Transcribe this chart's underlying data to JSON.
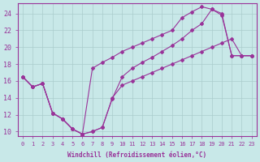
{
  "xlabel": "Windchill (Refroidissement éolien,°C)",
  "bg_color": "#c8e8e8",
  "line_color": "#993399",
  "grid_color": "#aacccc",
  "ylim": [
    9.5,
    25.2
  ],
  "xlim": [
    -0.5,
    23.5
  ],
  "yticks": [
    10,
    12,
    14,
    16,
    18,
    20,
    22,
    24
  ],
  "xticks": [
    0,
    1,
    2,
    3,
    4,
    5,
    6,
    7,
    8,
    9,
    10,
    11,
    12,
    13,
    14,
    15,
    16,
    17,
    18,
    19,
    20,
    21,
    22,
    23
  ],
  "series1_x": [
    0,
    1,
    2,
    3,
    4,
    5,
    6,
    7,
    8,
    9,
    10,
    11,
    12,
    13,
    14,
    15,
    16,
    17,
    18,
    19,
    20,
    21,
    22,
    23
  ],
  "series1_y": [
    16.5,
    15.3,
    15.7,
    12.2,
    11.5,
    10.3,
    9.7,
    17.5,
    18.2,
    18.8,
    19.5,
    20.0,
    20.5,
    21.0,
    21.5,
    22.0,
    23.5,
    24.2,
    24.8,
    24.5,
    24.0,
    19.0,
    19.0,
    19.0
  ],
  "series2_x": [
    0,
    1,
    2,
    3,
    4,
    5,
    6,
    7,
    8,
    9,
    10,
    11,
    12,
    13,
    14,
    15,
    16,
    17,
    18,
    19,
    20,
    21,
    22,
    23
  ],
  "series2_y": [
    16.5,
    15.3,
    15.7,
    12.2,
    11.5,
    10.3,
    9.7,
    10.0,
    10.5,
    13.9,
    16.5,
    17.5,
    18.2,
    18.8,
    19.5,
    20.2,
    21.0,
    22.0,
    22.8,
    24.5,
    23.8,
    19.0,
    19.0,
    19.0
  ],
  "series3_x": [
    0,
    1,
    2,
    3,
    4,
    5,
    6,
    7,
    8,
    9,
    10,
    11,
    12,
    13,
    14,
    15,
    16,
    17,
    18,
    19,
    20,
    21,
    22,
    23
  ],
  "series3_y": [
    16.5,
    15.3,
    15.7,
    12.2,
    11.5,
    10.3,
    9.7,
    10.0,
    10.5,
    14.0,
    15.5,
    16.0,
    16.5,
    17.0,
    17.5,
    18.0,
    18.5,
    19.0,
    19.5,
    20.0,
    20.5,
    21.0,
    19.0,
    19.0
  ]
}
